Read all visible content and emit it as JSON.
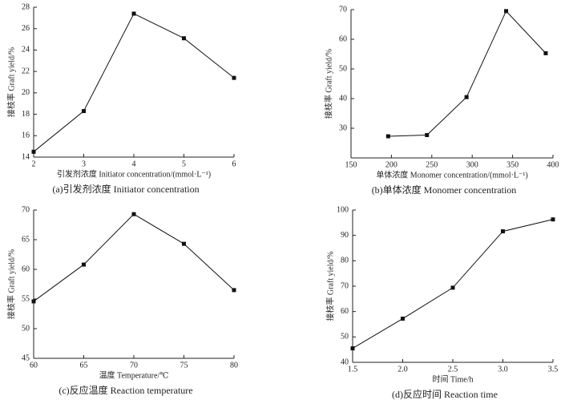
{
  "chart_data": [
    {
      "type": "line",
      "title": "(a)引发剂浓度 Initiator concentration",
      "x_label": "引发剂浓度 Initiator concentration/(mmol·L⁻¹)",
      "y_label": "接枝率 Graft yield/%",
      "x": [
        2,
        3,
        4,
        5,
        6
      ],
      "series": [
        {
          "color": "#111111",
          "values": [
            14.5,
            18.3,
            27.4,
            25.1,
            21.4
          ]
        }
      ],
      "xlim": [
        2,
        6
      ],
      "xticks": [
        2,
        3,
        4,
        5,
        6
      ],
      "ylim": [
        14,
        28
      ],
      "yticks": [
        14,
        16,
        18,
        20,
        22,
        24,
        26,
        28
      ]
    },
    {
      "type": "line",
      "title": "(b)单体浓度 Monomer concentration",
      "x_label": "单体浓度 Monomer concentration/(mmol·L⁻¹)",
      "y_label": "接枝率 Graft yield/%",
      "x": [
        196,
        244,
        293,
        342,
        391
      ],
      "series": [
        {
          "color": "#111111",
          "values": [
            27.3,
            27.7,
            40.5,
            69.5,
            55.3
          ]
        }
      ],
      "xlim": [
        150,
        400
      ],
      "xticks": [
        150,
        200,
        250,
        300,
        350,
        400
      ],
      "ylim": [
        20,
        70
      ],
      "yticks": [
        30,
        40,
        50,
        60,
        70
      ]
    },
    {
      "type": "line",
      "title": "(c)反应温度 Reaction temperature",
      "x_label": "温度 Temperature/℃",
      "y_label": "接枝率 Graft yield/%",
      "x": [
        60,
        65,
        70,
        75,
        80
      ],
      "series": [
        {
          "color": "#111111",
          "values": [
            54.6,
            60.8,
            69.3,
            64.3,
            56.5
          ]
        }
      ],
      "xlim": [
        60,
        80
      ],
      "xticks": [
        60,
        65,
        70,
        75,
        80
      ],
      "ylim": [
        45,
        70
      ],
      "yticks": [
        45,
        50,
        55,
        60,
        65,
        70
      ]
    },
    {
      "type": "line",
      "title": "(d)反应时间 Reaction time",
      "x_label": "时间 Time/h",
      "y_label": "接枝率 Graft yield/%",
      "x": [
        1.5,
        2,
        2.5,
        3,
        3.5
      ],
      "series": [
        {
          "color": "#111111",
          "values": [
            45.5,
            57.2,
            69.4,
            91.6,
            96.3
          ]
        }
      ],
      "xlim": [
        1.5,
        3.5
      ],
      "xticks": [
        1.5,
        {
          "value": 2,
          "label": "2.0"
        },
        2.5,
        {
          "value": 3,
          "label": "3.0"
        },
        3.5
      ],
      "ylim": [
        40,
        100
      ],
      "yticks": [
        40,
        50,
        60,
        70,
        80,
        90,
        100
      ]
    }
  ]
}
